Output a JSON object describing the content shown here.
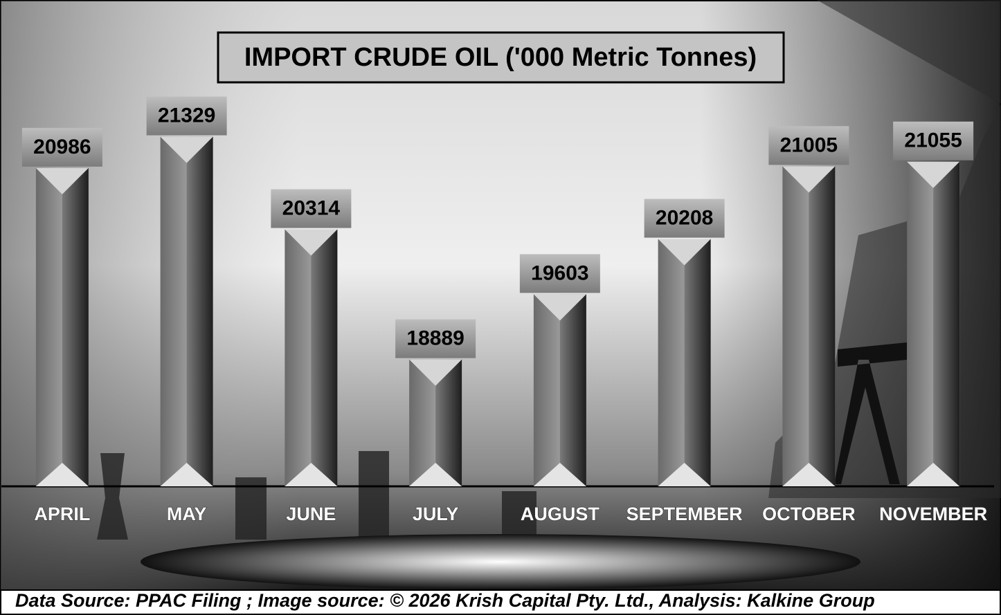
{
  "chart_data": {
    "type": "bar",
    "title": "IMPORT CRUDE OIL ('000 Metric Tonnes)",
    "categories": [
      "APRIL",
      "MAY",
      "JUNE",
      "JULY",
      "AUGUST",
      "SEPTEMBER",
      "OCTOBER",
      "NOVEMBER"
    ],
    "values": [
      20986,
      21329,
      20314,
      18889,
      19603,
      20208,
      21005,
      21055
    ],
    "ylim": [
      17500,
      21500
    ],
    "caption": "Data Source: PPAC Filing ; Image source: © 2026 Krish Capital Pty. Ltd., Analysis: Kalkine Group"
  }
}
